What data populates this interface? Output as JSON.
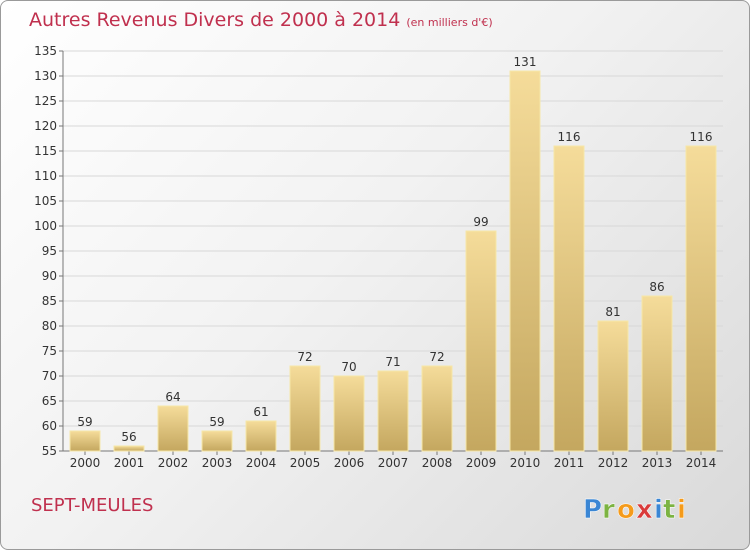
{
  "header": {
    "title": "Autres Revenus Divers de 2000 à 2014",
    "unit": "(en milliers d'€)"
  },
  "footer": {
    "place": "SEPT-MEULES",
    "logo_text": "Proxiti"
  },
  "colors": {
    "title": "#c0304e",
    "bar_light": "#f5dc9a",
    "bar_dark": "#c4a75f",
    "bar_border": "#f6e7a8"
  },
  "chart_data": {
    "type": "bar",
    "categories": [
      "2000",
      "2001",
      "2002",
      "2003",
      "2004",
      "2005",
      "2006",
      "2007",
      "2008",
      "2009",
      "2010",
      "2011",
      "2012",
      "2013",
      "2014"
    ],
    "values": [
      59,
      56,
      64,
      59,
      61,
      72,
      70,
      71,
      72,
      99,
      131,
      116,
      81,
      86,
      116
    ],
    "data_labels": [
      "59",
      "56",
      "64",
      "59",
      "61",
      "72",
      "70",
      "71",
      "72",
      "99",
      "131",
      "116",
      "81",
      "86",
      "116"
    ],
    "ylim": [
      55,
      135
    ],
    "yticks": [
      "55",
      "60",
      "65",
      "70",
      "75",
      "80",
      "85",
      "90",
      "95",
      "100",
      "105",
      "110",
      "115",
      "120",
      "125",
      "130",
      "135"
    ],
    "grid": true,
    "legend": "none"
  }
}
